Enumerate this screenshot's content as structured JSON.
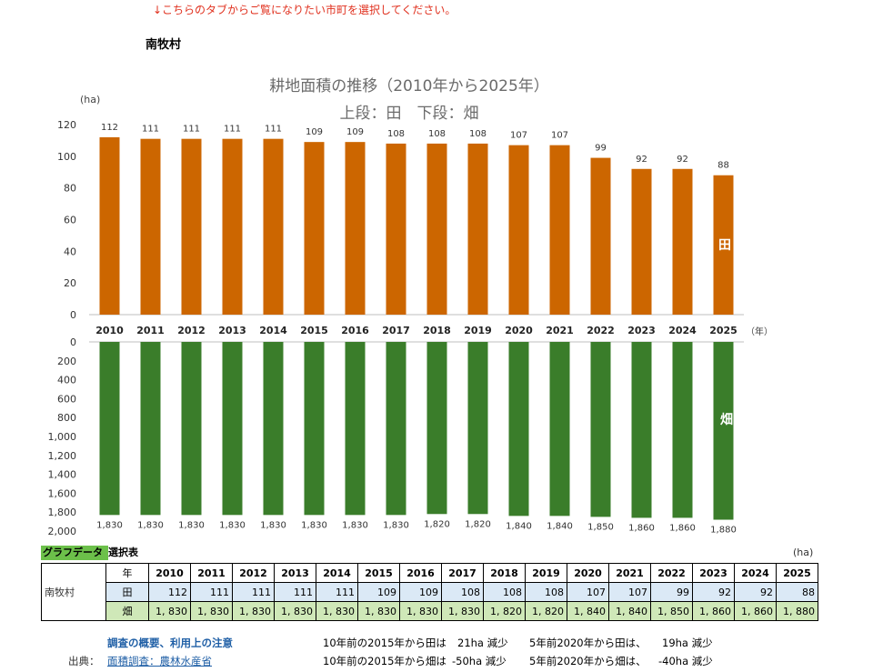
{
  "notice": "↓こちらのタブからご覧になりたい市町を選択してください。",
  "municipality": "南牧村",
  "chart_data": {
    "type": "bar",
    "title": "耕地面積の推移（2010年から2025年）",
    "subtitle": "上段：田　下段：畑",
    "ylabel": "(ha)",
    "xlabel": "（年）",
    "categories": [
      "2010",
      "2011",
      "2012",
      "2013",
      "2014",
      "2015",
      "2016",
      "2017",
      "2018",
      "2019",
      "2020",
      "2021",
      "2022",
      "2023",
      "2024",
      "2025"
    ],
    "series": [
      {
        "name": "田",
        "color": "#cc6600",
        "ylim": [
          0,
          120
        ],
        "ticks": [
          "0",
          "20",
          "40",
          "60",
          "80",
          "100",
          "120"
        ],
        "values": [
          112,
          111,
          111,
          111,
          111,
          109,
          109,
          108,
          108,
          108,
          107,
          107,
          99,
          92,
          92,
          88
        ],
        "labels": [
          "112",
          "111",
          "111",
          "111",
          "111",
          "109",
          "109",
          "108",
          "108",
          "108",
          "107",
          "107",
          "99",
          "92",
          "92",
          "88"
        ]
      },
      {
        "name": "畑",
        "color": "#3a7d2a",
        "ylim": [
          0,
          2000
        ],
        "ticks": [
          "0",
          "200",
          "400",
          "600",
          "800",
          "1,000",
          "1,200",
          "1,400",
          "1,600",
          "1,800",
          "2,000"
        ],
        "values": [
          1830,
          1830,
          1830,
          1830,
          1830,
          1830,
          1830,
          1830,
          1820,
          1820,
          1840,
          1840,
          1850,
          1860,
          1860,
          1880
        ],
        "labels": [
          "1,830",
          "1,830",
          "1,830",
          "1,830",
          "1,830",
          "1,830",
          "1,830",
          "1,830",
          "1,820",
          "1,820",
          "1,840",
          "1,840",
          "1,850",
          "1,860",
          "1,860",
          "1,880"
        ]
      }
    ]
  },
  "table": {
    "label_a": "グラフデータ",
    "label_b": "選択表",
    "unit": "(ha)",
    "row_label": "南牧村",
    "year_header": "年",
    "rice_label": "田",
    "field_label": "畑",
    "years": [
      "2010",
      "2011",
      "2012",
      "2013",
      "2014",
      "2015",
      "2016",
      "2017",
      "2018",
      "2019",
      "2020",
      "2021",
      "2022",
      "2023",
      "2024",
      "2025"
    ],
    "rice": [
      "112",
      "111",
      "111",
      "111",
      "111",
      "109",
      "109",
      "108",
      "108",
      "108",
      "107",
      "107",
      "99",
      "92",
      "92",
      "88"
    ],
    "field": [
      "1, 830",
      "1, 830",
      "1, 830",
      "1, 830",
      "1, 830",
      "1, 830",
      "1, 830",
      "1, 830",
      "1, 820",
      "1, 820",
      "1, 840",
      "1, 840",
      "1, 850",
      "1, 860",
      "1, 860",
      "1, 880"
    ]
  },
  "footer": {
    "overview_link": "調査の概要、利用上の注意",
    "source_label": "出典：",
    "source_link": "面積調査：農林水産省",
    "note1_a": "10年前の2015年から田は",
    "note1_b": "21ha 減少",
    "note1_c": "5年前2020年から田は、",
    "note1_d": "19ha 減少",
    "note2_a": "10年前の2015年から畑は",
    "note2_b": "-50ha 減少",
    "note2_c": "5年前2020年から畑は、",
    "note2_d": "-40ha 減少"
  }
}
